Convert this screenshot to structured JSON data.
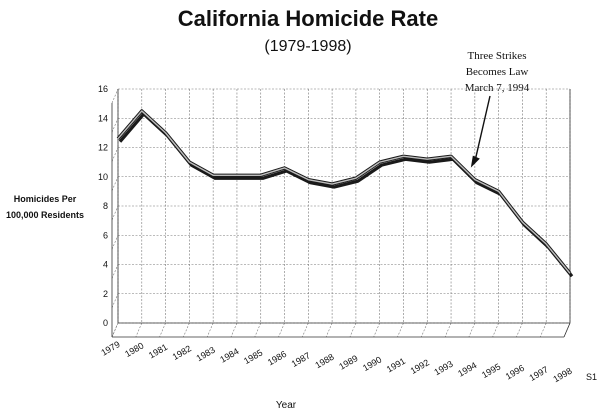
{
  "chart_data": {
    "type": "line",
    "title": "California Homicide Rate",
    "subtitle": "(1979-1998)",
    "ylabel": [
      "Homicides Per",
      "100,000 Residents"
    ],
    "xlabel": "Year",
    "ylim": [
      0,
      16
    ],
    "y_ticks": [
      0,
      2,
      4,
      6,
      8,
      10,
      12,
      14,
      16
    ],
    "categories": [
      "1979",
      "1980",
      "1981",
      "1982",
      "1983",
      "1984",
      "1985",
      "1986",
      "1987",
      "1988",
      "1989",
      "1990",
      "1991",
      "1992",
      "1993",
      "1994",
      "1995",
      "1996",
      "1997",
      "1998"
    ],
    "series": [
      {
        "name": "S1",
        "values": [
          12.6,
          14.5,
          13.0,
          11.0,
          10.1,
          10.1,
          10.1,
          10.6,
          9.8,
          9.5,
          9.9,
          11.0,
          11.4,
          11.2,
          11.4,
          9.8,
          9.0,
          6.9,
          5.4,
          3.4
        ]
      }
    ],
    "annotation": {
      "lines": [
        "Three Strikes",
        "Becomes Law",
        "March 7, 1994"
      ],
      "x": "1994"
    },
    "grid": true,
    "style": "3d-perspective"
  }
}
